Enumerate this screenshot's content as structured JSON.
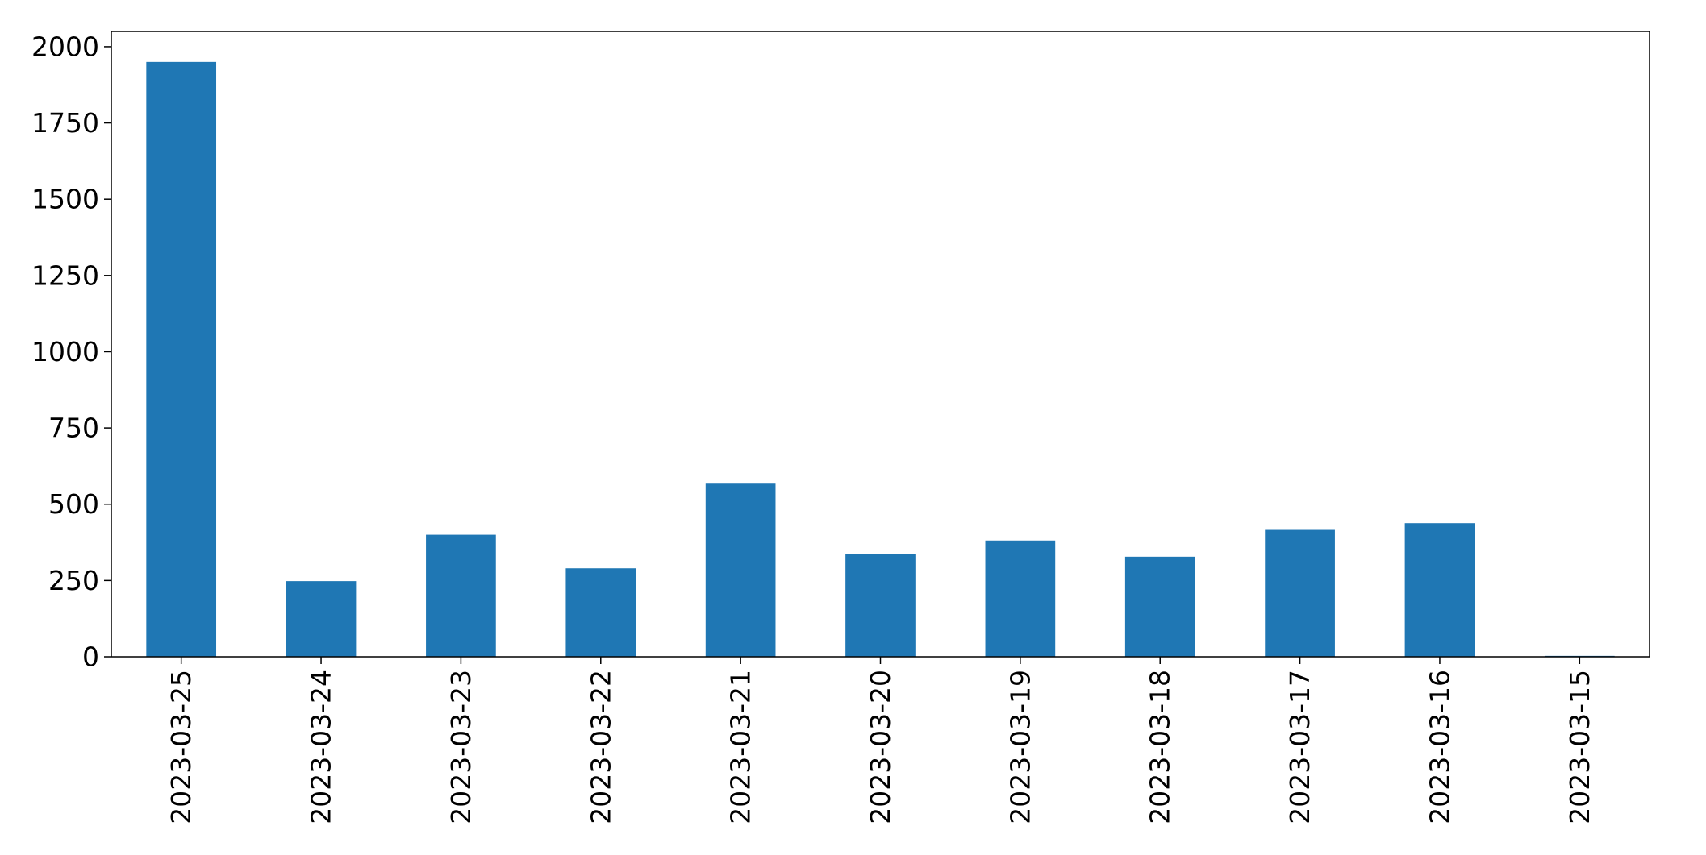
{
  "chart_data": {
    "type": "bar",
    "categories": [
      "2023-03-25",
      "2023-03-24",
      "2023-03-23",
      "2023-03-22",
      "2023-03-21",
      "2023-03-20",
      "2023-03-19",
      "2023-03-18",
      "2023-03-17",
      "2023-03-16",
      "2023-03-15"
    ],
    "values": [
      1950,
      248,
      400,
      290,
      570,
      336,
      381,
      328,
      416,
      438,
      3
    ],
    "title": "",
    "xlabel": "",
    "ylabel": "",
    "ylim": [
      0,
      2050
    ],
    "yticks": [
      0,
      250,
      500,
      750,
      1000,
      1250,
      1500,
      1750,
      2000
    ],
    "grid": false,
    "legend": "none",
    "colors": {
      "bar": "#1f77b4",
      "axes": "#000000",
      "text": "#000000"
    }
  }
}
